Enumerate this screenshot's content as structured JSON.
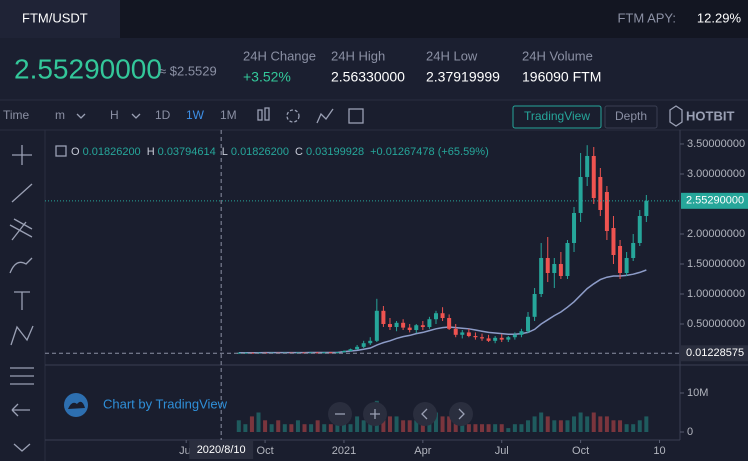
{
  "header": {
    "pair": "FTM/USDT",
    "apy_label": "FTM APY:",
    "apy_value": "12.29%",
    "price": "2.55290000",
    "price_usd": "≈ $2.5529",
    "stats": [
      {
        "label": "24H Change",
        "value": "+3.52%"
      },
      {
        "label": "24H High",
        "value": "2.56330000"
      },
      {
        "label": "24H Low",
        "value": "2.37919999"
      },
      {
        "label": "24H Volume",
        "value": "196090 FTM"
      }
    ]
  },
  "toolbar": {
    "intervals": [
      "Time",
      "m",
      "H",
      "1D",
      "1W",
      "1M"
    ],
    "active": 4,
    "views": [
      "TradingView",
      "Depth"
    ],
    "brand": "HOTBIT"
  },
  "chart_ui": {
    "ohlc": [
      {
        "label": "O",
        "value": "0.01826200"
      },
      {
        "label": "H",
        "value": "0.03794614"
      },
      {
        "label": "L",
        "value": "0.01826200"
      },
      {
        "label": "C",
        "value": "0.03199928"
      }
    ],
    "change": "+0.01267478 (+65.59%)",
    "credit": "Chart by TradingView"
  },
  "chart_data": {
    "type": "candlestick",
    "x": [
      8,
      8.25,
      8.5,
      8.75,
      9,
      9.25,
      9.5,
      9.75,
      10,
      10.25,
      10.5,
      10.75,
      11,
      11.25,
      11.5,
      11.75,
      12,
      12.25,
      12.5,
      12.75,
      13,
      13.25,
      13.5,
      13.75,
      14,
      14.25,
      14.5,
      14.75,
      15,
      15.25,
      15.5,
      15.75,
      16,
      16.25,
      16.5,
      16.75,
      17,
      17.25,
      17.5,
      17.75,
      18,
      18.25,
      18.5,
      18.75,
      19,
      19.25,
      19.5,
      19.75,
      20,
      20.25,
      20.5,
      20.75,
      21,
      21.25,
      21.5,
      21.75,
      22,
      22.25,
      22.5,
      22.75,
      23,
      23.25,
      23.5
    ],
    "open": [
      0.02,
      0.021,
      0.022,
      0.021,
      0.023,
      0.022,
      0.024,
      0.023,
      0.025,
      0.024,
      0.026,
      0.025,
      0.027,
      0.026,
      0.028,
      0.027,
      0.03,
      0.05,
      0.08,
      0.12,
      0.18,
      0.22,
      0.72,
      0.5,
      0.45,
      0.52,
      0.44,
      0.4,
      0.48,
      0.45,
      0.58,
      0.68,
      0.6,
      0.42,
      0.32,
      0.36,
      0.3,
      0.28,
      0.26,
      0.22,
      0.27,
      0.24,
      0.28,
      0.32,
      0.38,
      0.62,
      1.0,
      1.6,
      1.35,
      1.5,
      1.3,
      1.85,
      2.35,
      2.95,
      3.3,
      2.95,
      2.7,
      2.1,
      1.8,
      1.35,
      1.6,
      1.85,
      2.3
    ],
    "high": [
      0.025,
      0.026,
      0.026,
      0.027,
      0.027,
      0.028,
      0.028,
      0.029,
      0.029,
      0.03,
      0.03,
      0.031,
      0.031,
      0.032,
      0.032,
      0.034,
      0.06,
      0.09,
      0.15,
      0.22,
      0.28,
      0.92,
      0.8,
      0.6,
      0.55,
      0.58,
      0.5,
      0.5,
      0.55,
      0.62,
      0.72,
      0.78,
      0.66,
      0.5,
      0.4,
      0.42,
      0.36,
      0.34,
      0.32,
      0.3,
      0.33,
      0.3,
      0.36,
      0.42,
      0.7,
      1.1,
      1.85,
      1.95,
      1.6,
      1.7,
      1.9,
      2.45,
      3.35,
      3.48,
      3.45,
      3.1,
      2.8,
      2.3,
      1.9,
      1.7,
      2.0,
      2.4,
      2.65
    ],
    "low": [
      0.018,
      0.019,
      0.019,
      0.019,
      0.02,
      0.02,
      0.021,
      0.021,
      0.022,
      0.022,
      0.023,
      0.023,
      0.024,
      0.024,
      0.025,
      0.025,
      0.025,
      0.045,
      0.07,
      0.1,
      0.15,
      0.2,
      0.45,
      0.4,
      0.38,
      0.4,
      0.36,
      0.35,
      0.4,
      0.42,
      0.5,
      0.55,
      0.4,
      0.28,
      0.26,
      0.28,
      0.24,
      0.22,
      0.2,
      0.18,
      0.2,
      0.2,
      0.24,
      0.28,
      0.35,
      0.55,
      0.95,
      1.2,
      1.1,
      1.25,
      1.25,
      1.7,
      2.2,
      2.8,
      2.5,
      2.3,
      1.9,
      1.5,
      1.25,
      1.3,
      1.55,
      1.8,
      2.2
    ],
    "close": [
      0.021,
      0.022,
      0.021,
      0.023,
      0.022,
      0.024,
      0.023,
      0.025,
      0.024,
      0.026,
      0.025,
      0.027,
      0.026,
      0.028,
      0.027,
      0.03,
      0.05,
      0.08,
      0.12,
      0.18,
      0.22,
      0.72,
      0.5,
      0.45,
      0.52,
      0.44,
      0.4,
      0.48,
      0.45,
      0.58,
      0.68,
      0.6,
      0.42,
      0.32,
      0.36,
      0.3,
      0.28,
      0.26,
      0.22,
      0.27,
      0.24,
      0.28,
      0.32,
      0.38,
      0.62,
      1.0,
      1.6,
      1.35,
      1.5,
      1.3,
      1.85,
      2.35,
      2.95,
      3.3,
      2.6,
      2.4,
      2.05,
      1.65,
      1.35,
      1.6,
      1.85,
      2.3,
      2.5529
    ],
    "colors": {
      "up": "#26a69a",
      "down": "#ef5350"
    },
    "ma": {
      "color": "#8d9cc8",
      "values": [
        0.022,
        0.022,
        0.022,
        0.022,
        0.023,
        0.023,
        0.023,
        0.023,
        0.024,
        0.024,
        0.024,
        0.025,
        0.025,
        0.025,
        0.026,
        0.026,
        0.04,
        0.05,
        0.06,
        0.08,
        0.1,
        0.15,
        0.19,
        0.22,
        0.26,
        0.29,
        0.31,
        0.34,
        0.36,
        0.39,
        0.42,
        0.44,
        0.45,
        0.44,
        0.43,
        0.42,
        0.4,
        0.38,
        0.36,
        0.35,
        0.34,
        0.33,
        0.33,
        0.34,
        0.36,
        0.41,
        0.5,
        0.57,
        0.64,
        0.7,
        0.78,
        0.87,
        0.98,
        1.09,
        1.17,
        1.24,
        1.28,
        1.3,
        1.3,
        1.31,
        1.33,
        1.36,
        1.4
      ]
    },
    "volume": {
      "values": [
        3000000,
        2000000,
        4000000,
        5000000,
        3000000,
        2000000,
        3000000,
        2000000,
        2000000,
        3000000,
        2000000,
        2000000,
        3000000,
        2000000,
        2000000,
        3000000,
        3000000,
        2000000,
        4000000,
        3000000,
        3000000,
        8000000,
        6000000,
        4000000,
        4000000,
        3000000,
        3000000,
        3000000,
        4000000,
        4000000,
        5000000,
        4000000,
        4000000,
        5000000,
        3000000,
        2000000,
        2000000,
        2000000,
        2000000,
        2000000,
        2000000,
        1000000,
        2000000,
        2000000,
        3000000,
        4000000,
        5000000,
        4000000,
        3000000,
        3000000,
        3000000,
        4000000,
        5000000,
        4000000,
        5000000,
        4000000,
        4000000,
        3000000,
        3000000,
        2000000,
        2000000,
        3000000,
        4000000
      ],
      "ylim": [
        -2050000,
        16410000
      ],
      "yticks": [
        0,
        {
          "value": 10000000,
          "label": "10M"
        }
      ]
    },
    "xlim": [
      0.63,
      24.78
    ],
    "xticks": [
      {
        "value": 6,
        "label": "Jul"
      },
      {
        "value": 9,
        "label": "Oct"
      },
      {
        "value": 12,
        "label": "2021"
      },
      {
        "value": 15,
        "label": "Apr"
      },
      {
        "value": 18,
        "label": "Jul"
      },
      {
        "value": 21,
        "label": "Oct"
      },
      {
        "value": 24,
        "label": "10"
      }
    ],
    "ylim": [
      -0.133,
      3.733
    ],
    "yticks": [
      {
        "value": 0.5,
        "label": "0.50000000"
      },
      {
        "value": 1,
        "label": "1.00000000"
      },
      {
        "value": 1.5,
        "label": "1.50000000"
      },
      {
        "value": 2,
        "label": "2.00000000"
      },
      {
        "value": 3,
        "label": "3.00000000"
      },
      {
        "value": 3.5,
        "label": "3.50000000"
      }
    ],
    "last_price": {
      "value": 2.5529,
      "label": "2.55290000"
    },
    "crosshair": {
      "x": {
        "value": 7.33,
        "label": "2020/8/10"
      },
      "y": 0.01228575
    }
  }
}
